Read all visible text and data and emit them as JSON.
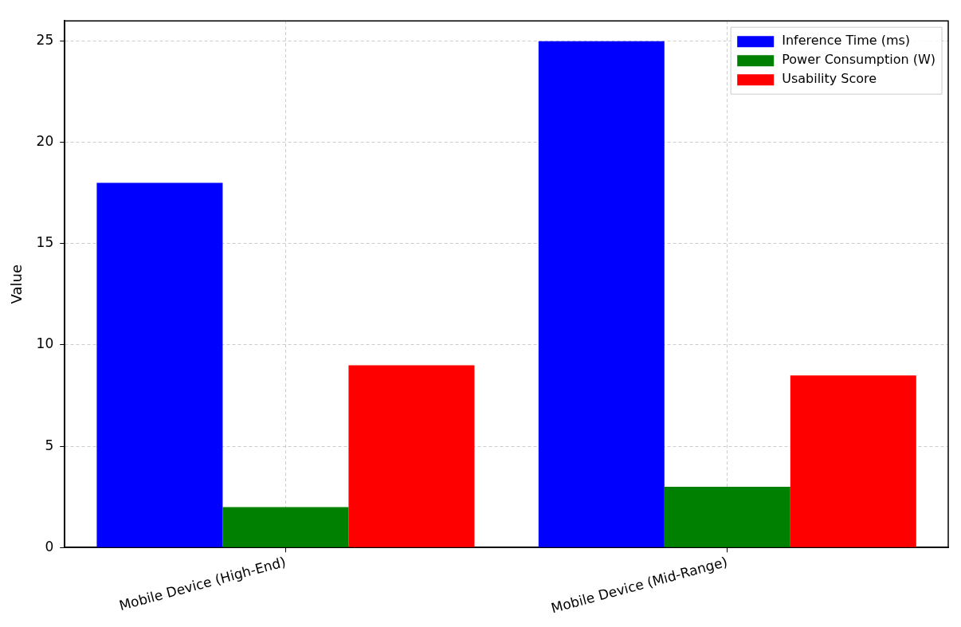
{
  "chart_data": {
    "type": "bar",
    "ylabel": "Value",
    "categories": [
      "Mobile Device (High-End)",
      "Mobile Device (Mid-Range)"
    ],
    "series": [
      {
        "name": "Inference Time (ms)",
        "color": "#0000ff",
        "values": [
          18,
          25
        ]
      },
      {
        "name": "Power Consumption (W)",
        "color": "#008000",
        "values": [
          2,
          3
        ]
      },
      {
        "name": "Usability Score",
        "color": "#ff0000",
        "values": [
          9,
          8.5
        ]
      }
    ],
    "ylim": [
      0,
      26
    ],
    "yticks": [
      0,
      5,
      10,
      15,
      20,
      25
    ],
    "grid": true,
    "legend": "top right"
  }
}
